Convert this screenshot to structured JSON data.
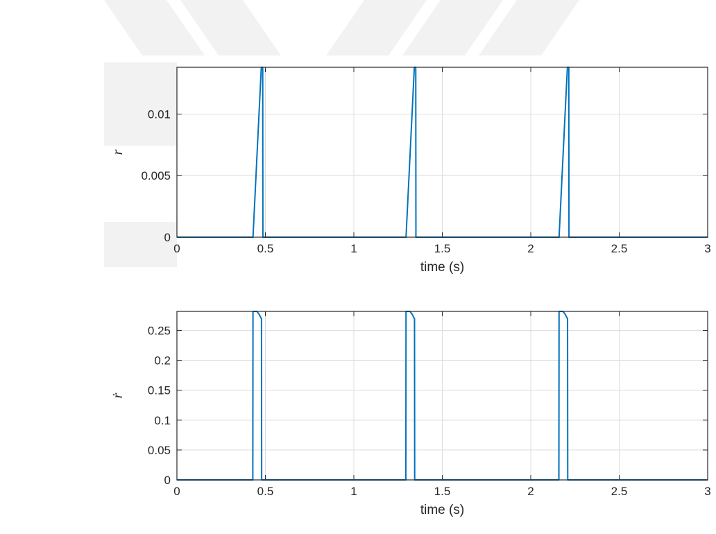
{
  "colors": {
    "series": "#0072BD",
    "watermark": "#f2f2f2"
  },
  "chart_data": [
    {
      "type": "line",
      "title": "",
      "xlabel": "time (s)",
      "ylabel": "r",
      "xlim": [
        0,
        3
      ],
      "ylim": [
        0,
        0.0138
      ],
      "xticks": [
        0,
        0.5,
        1,
        1.5,
        2,
        2.5,
        3
      ],
      "xtick_labels": [
        "0",
        "0.5",
        "1",
        "1.5",
        "2",
        "2.5",
        "3"
      ],
      "yticks": [
        0,
        0.005,
        0.01
      ],
      "ytick_labels": [
        "0",
        "0.005",
        "0.01"
      ],
      "grid": true,
      "legend": "none",
      "series": [
        {
          "x": [
            0,
            0.43,
            0.477,
            0.478,
            0.485,
            0.486,
            1.295,
            1.342,
            1.343,
            1.35,
            1.351,
            2.16,
            2.207,
            2.208,
            2.215,
            2.216,
            3.0
          ],
          "y": [
            0,
            0,
            0.0138,
            0.0138,
            0.0138,
            0,
            0,
            0.0138,
            0.0138,
            0.0138,
            0,
            0,
            0.0138,
            0.0138,
            0.0138,
            0,
            0
          ]
        }
      ]
    },
    {
      "type": "line",
      "title": "",
      "xlabel": "time (s)",
      "ylabel": "ṙ",
      "xlim": [
        0,
        3
      ],
      "ylim": [
        0,
        0.282
      ],
      "xticks": [
        0,
        0.5,
        1,
        1.5,
        2,
        2.5,
        3
      ],
      "xtick_labels": [
        "0",
        "0.5",
        "1",
        "1.5",
        "2",
        "2.5",
        "3"
      ],
      "yticks": [
        0,
        0.05,
        0.1,
        0.15,
        0.2,
        0.25
      ],
      "ytick_labels": [
        "0",
        "0.05",
        "0.1",
        "0.15",
        "0.2",
        "0.25"
      ],
      "grid": true,
      "legend": "none",
      "series": [
        {
          "x": [
            0,
            0.429,
            0.43,
            0.452,
            0.465,
            0.477,
            0.478,
            0.479,
            1.294,
            1.295,
            1.317,
            1.33,
            1.342,
            1.343,
            1.344,
            2.159,
            2.16,
            2.182,
            2.195,
            2.207,
            2.208,
            2.209,
            3.0
          ],
          "y": [
            0,
            0,
            0.282,
            0.282,
            0.277,
            0.27,
            0.27,
            0,
            0,
            0.282,
            0.282,
            0.277,
            0.27,
            0.27,
            0,
            0,
            0.282,
            0.282,
            0.277,
            0.27,
            0.27,
            0,
            0
          ]
        }
      ]
    }
  ]
}
